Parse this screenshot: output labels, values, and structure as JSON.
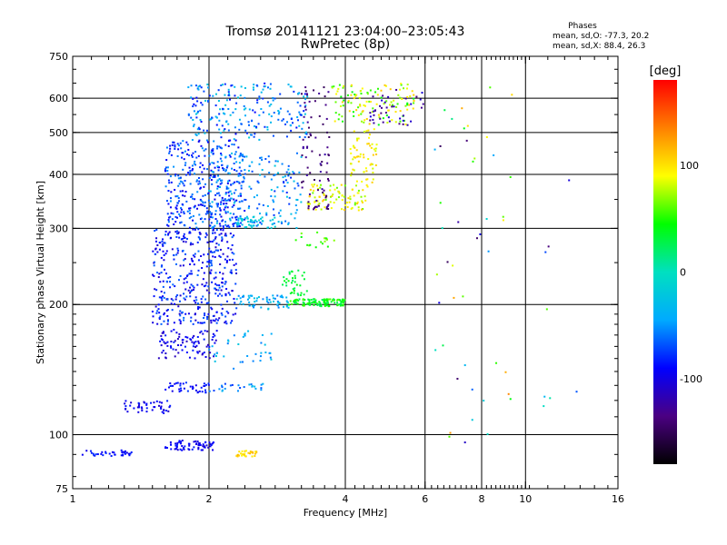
{
  "header": {
    "title": "Tromsø 20141121 23:04:00–23:05:43",
    "subtitle": "RwPretec (8p)"
  },
  "stats": {
    "heading": "Phases",
    "line1": "mean, sd,O: -77.3, 20.2",
    "line2": "mean, sd,X:  88.4, 26.3"
  },
  "chart_data": {
    "type": "scatter",
    "title": "Tromsø 20141121 23:04:00–23:05:43",
    "subtitle": "RwPretec (8p)",
    "xlabel": "Frequency [MHz]",
    "ylabel": "Stationary phase Virtual Height [km]",
    "x_scale": "log",
    "y_scale": "log",
    "xlim": [
      1,
      16
    ],
    "ylim": [
      75,
      750
    ],
    "x_ticks": [
      1,
      2,
      4,
      6,
      8,
      10,
      16
    ],
    "y_ticks": [
      75,
      100,
      200,
      300,
      400,
      500,
      600,
      750
    ],
    "x_gridlines": [
      2,
      4,
      6,
      8,
      10
    ],
    "y_gridlines": [
      100,
      200,
      300,
      400,
      500,
      600
    ],
    "grid": true,
    "colorbar": {
      "label": "[deg]",
      "range": [
        -180,
        180
      ],
      "ticks": [
        -100,
        0,
        100
      ],
      "colormap": [
        "#000000",
        "#4b0082",
        "#0000ff",
        "#00aaff",
        "#00e0c0",
        "#00ff00",
        "#ffff00",
        "#ff8000",
        "#ff0000"
      ]
    },
    "clusters": [
      {
        "x": [
          1.05,
          1.35
        ],
        "y": [
          89,
          92
        ],
        "phase": [
          -100,
          -75
        ],
        "n": 35
      },
      {
        "x": [
          1.6,
          2.05
        ],
        "y": [
          92,
          97
        ],
        "phase": [
          -110,
          -80
        ],
        "n": 70
      },
      {
        "x": [
          2.3,
          2.55
        ],
        "y": [
          89,
          92
        ],
        "phase": [
          90,
          120
        ],
        "n": 30
      },
      {
        "x": [
          1.3,
          1.65
        ],
        "y": [
          112,
          120
        ],
        "phase": [
          -110,
          -80
        ],
        "n": 45
      },
      {
        "x": [
          1.6,
          2.0
        ],
        "y": [
          125,
          132
        ],
        "phase": [
          -105,
          -75
        ],
        "n": 40
      },
      {
        "x": [
          2.0,
          2.7
        ],
        "y": [
          126,
          132
        ],
        "phase": [
          -80,
          -30
        ],
        "n": 25
      },
      {
        "x": [
          1.55,
          2.1
        ],
        "y": [
          150,
          175
        ],
        "phase": [
          -115,
          -80
        ],
        "n": 90
      },
      {
        "x": [
          2.0,
          2.8
        ],
        "y": [
          140,
          175
        ],
        "phase": [
          -60,
          -20
        ],
        "n": 35
      },
      {
        "x": [
          1.5,
          2.3
        ],
        "y": [
          180,
          300
        ],
        "phase": [
          -110,
          -60
        ],
        "n": 400
      },
      {
        "x": [
          2.3,
          3.0
        ],
        "y": [
          195,
          210
        ],
        "phase": [
          -60,
          -20
        ],
        "n": 60
      },
      {
        "x": [
          3.0,
          4.0
        ],
        "y": [
          198,
          206
        ],
        "phase": [
          20,
          60
        ],
        "n": 110
      },
      {
        "x": [
          2.9,
          3.3
        ],
        "y": [
          210,
          240
        ],
        "phase": [
          20,
          45
        ],
        "n": 35
      },
      {
        "x": [
          3.1,
          3.8
        ],
        "y": [
          270,
          295
        ],
        "phase": [
          40,
          70
        ],
        "n": 18
      },
      {
        "x": [
          1.6,
          2.4
        ],
        "y": [
          300,
          480
        ],
        "phase": [
          -100,
          -50
        ],
        "n": 380
      },
      {
        "x": [
          2.0,
          3.2
        ],
        "y": [
          300,
          450
        ],
        "phase": [
          -80,
          -20
        ],
        "n": 180
      },
      {
        "x": [
          2.3,
          2.8
        ],
        "y": [
          300,
          320
        ],
        "phase": [
          -30,
          -10
        ],
        "n": 40
      },
      {
        "x": [
          3.3,
          4.5
        ],
        "y": [
          330,
          380
        ],
        "phase": [
          60,
          110
        ],
        "n": 90
      },
      {
        "x": [
          4.1,
          4.7
        ],
        "y": [
          380,
          520
        ],
        "phase": [
          80,
          110
        ],
        "n": 60
      },
      {
        "x": [
          1.8,
          3.3
        ],
        "y": [
          480,
          650
        ],
        "phase": [
          -90,
          -20
        ],
        "n": 220
      },
      {
        "x": [
          3.2,
          3.7
        ],
        "y": [
          330,
          640
        ],
        "phase": [
          -150,
          -120
        ],
        "n": 80
      },
      {
        "x": [
          3.7,
          5.7
        ],
        "y": [
          520,
          650
        ],
        "phase": [
          40,
          110
        ],
        "n": 120
      },
      {
        "x": [
          4.5,
          6.0
        ],
        "y": [
          520,
          640
        ],
        "phase": [
          -140,
          -100
        ],
        "n": 40
      },
      {
        "x": [
          6.3,
          9.5
        ],
        "y": [
          90,
          650
        ],
        "phase": [
          -150,
          150
        ],
        "n": 45
      },
      {
        "x": [
          10.5,
          13.5
        ],
        "y": [
          110,
          630
        ],
        "phase": [
          -150,
          150
        ],
        "n": 8
      }
    ]
  }
}
